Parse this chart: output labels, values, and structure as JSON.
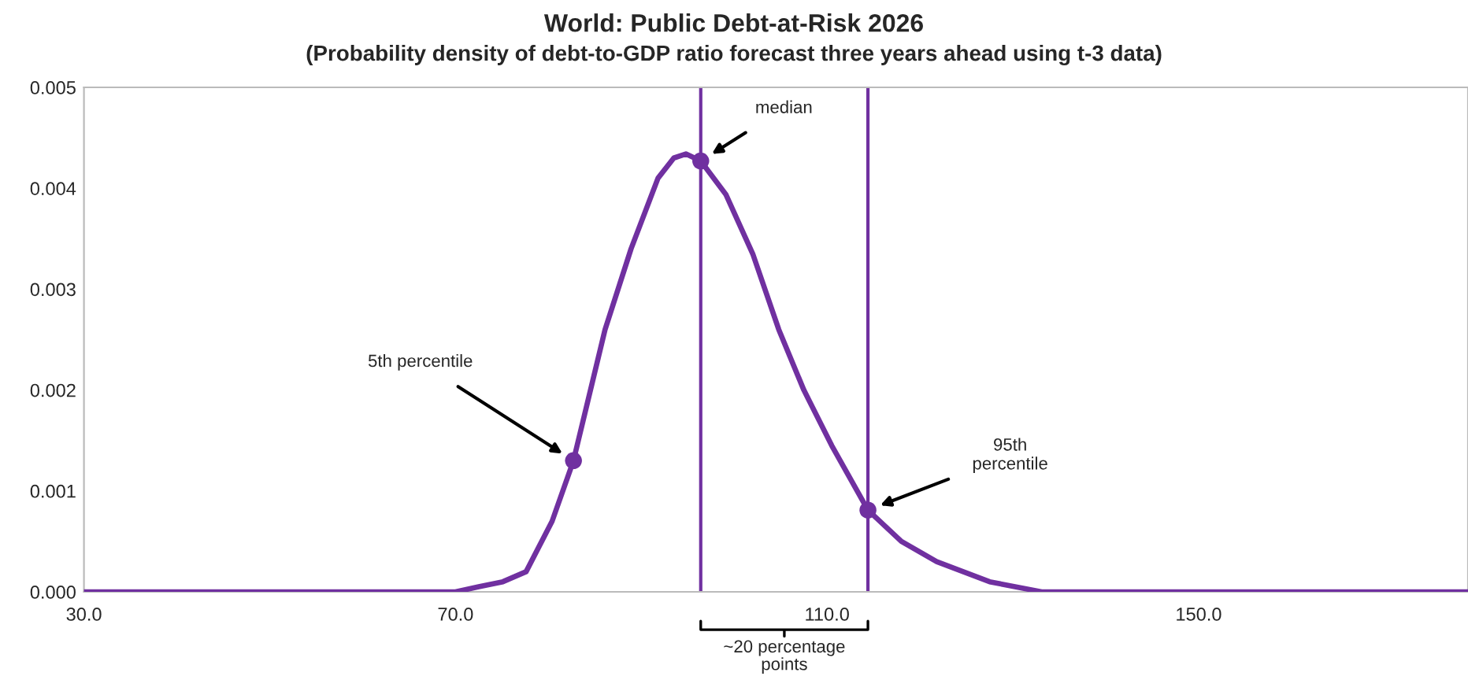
{
  "chart_data": {
    "type": "line",
    "title": "World: Public Debt-at-Risk 2026",
    "subtitle": "(Probability density of debt-to-GDP ratio forecast three years ahead using t-3 data)",
    "xlim": [
      30,
      179
    ],
    "ylim": [
      0,
      0.005
    ],
    "xticks": [
      {
        "value": 30,
        "label": "30.0"
      },
      {
        "value": 70,
        "label": "70.0"
      },
      {
        "value": 110,
        "label": "110.0"
      },
      {
        "value": 150,
        "label": "150.0"
      }
    ],
    "yticks": [
      {
        "value": 0,
        "label": "0.000"
      },
      {
        "value": 0.001,
        "label": "0.001"
      },
      {
        "value": 0.002,
        "label": "0.002"
      },
      {
        "value": 0.003,
        "label": "0.003"
      },
      {
        "value": 0.004,
        "label": "0.004"
      },
      {
        "value": 0.005,
        "label": "0.005"
      }
    ],
    "grid": false,
    "series": [
      {
        "color": "#7030a0",
        "marker": "none",
        "line_style": "solid",
        "x": [
          30,
          50,
          60,
          65,
          70,
          72.5,
          75.1,
          77.6,
          80.4,
          82.7,
          86.1,
          88.9,
          91.8,
          93.5,
          94.8,
          96.4,
          99.1,
          102,
          104.8,
          107.5,
          110.5,
          114.4,
          118,
          121.8,
          127.5,
          133.1,
          144.4,
          160,
          179
        ],
        "values": [
          0,
          0,
          0,
          0,
          0,
          5e-05,
          0.0001,
          0.0002,
          0.0007,
          0.0013,
          0.0026,
          0.0034,
          0.0041,
          0.0043,
          0.00434,
          0.00427,
          0.00394,
          0.00335,
          0.0026,
          0.002,
          0.00145,
          0.00081,
          0.0005,
          0.0003,
          0.0001,
          0,
          0,
          0,
          0
        ]
      },
      {
        "type": "scatter",
        "color": "#7030a0",
        "marker": "circle",
        "x": [
          82.7,
          96.4,
          114.4
        ],
        "values": [
          0.0013,
          0.00427,
          0.00081
        ]
      }
    ],
    "ref_lines": [
      {
        "axis": "x",
        "value": 96.4,
        "color": "#7030a0"
      },
      {
        "axis": "x",
        "value": 114.4,
        "color": "#7030a0"
      }
    ],
    "annotations": [
      "5th percentile",
      "median",
      "95th\npercentile",
      "~20 percentage\npoints"
    ]
  }
}
